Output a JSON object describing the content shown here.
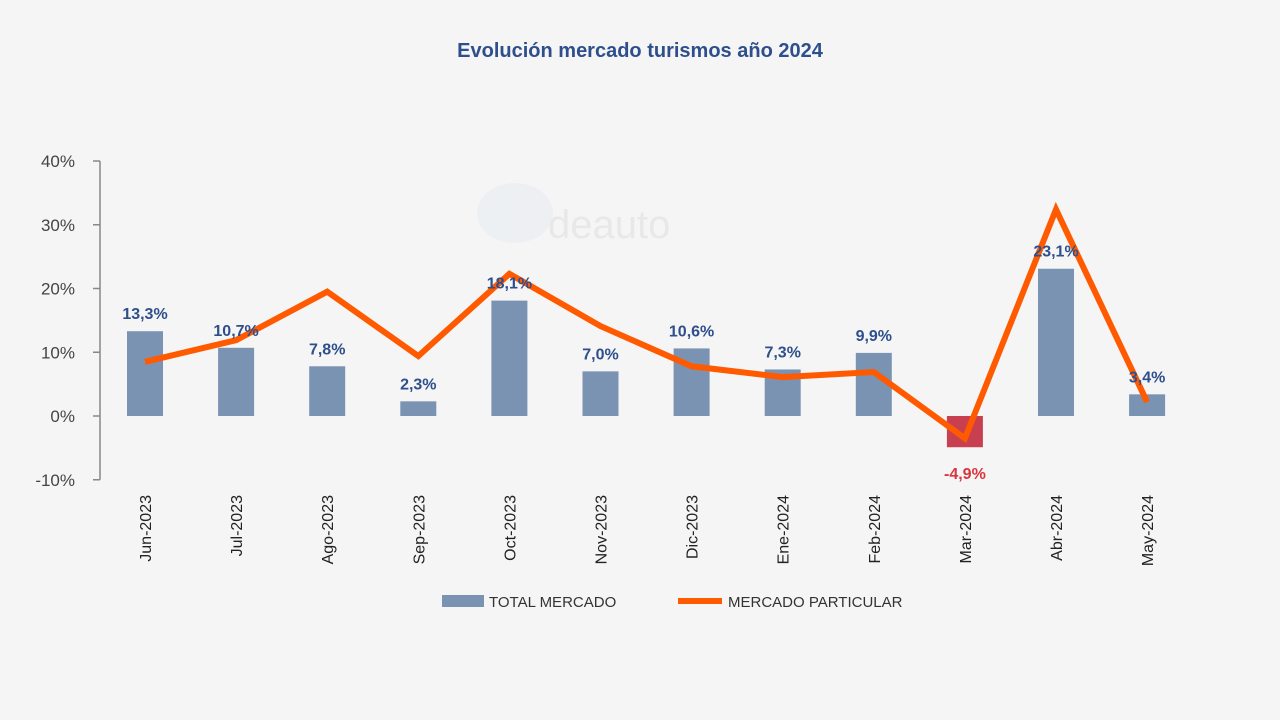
{
  "watermark": "Ideauto",
  "chart_data": {
    "type": "bar",
    "title": "Evolución mercado turismos año 2024",
    "xlabel": "",
    "ylabel": "",
    "ylim": [
      -10,
      40
    ],
    "yticks": [
      -10,
      0,
      10,
      20,
      30,
      40
    ],
    "ytick_labels": [
      "-10%",
      "0%",
      "10%",
      "20%",
      "30%",
      "40%"
    ],
    "grid": false,
    "legend_position": "bottom",
    "categories": [
      "Jun-2023",
      "Jul-2023",
      "Ago-2023",
      "Sep-2023",
      "Oct-2023",
      "Nov-2023",
      "Dic-2023",
      "Ene-2024",
      "Feb-2024",
      "Mar-2024",
      "Abr-2024",
      "May-2024"
    ],
    "series": [
      {
        "name": "TOTAL MERCADO",
        "type": "bar",
        "color": "#7b93b3",
        "negative_color": "#c8404f",
        "values": [
          13.3,
          10.7,
          7.8,
          2.3,
          18.1,
          7.0,
          10.6,
          7.3,
          9.9,
          -4.9,
          23.1,
          3.4
        ],
        "data_labels": [
          "13,3%",
          "10,7%",
          "7,8%",
          "2,3%",
          "18,1%",
          "7,0%",
          "10,6%",
          "7,3%",
          "9,9%",
          "-4,9%",
          "23,1%",
          "3,4%"
        ]
      },
      {
        "name": "MERCADO PARTICULAR",
        "type": "line",
        "color": "#ff5a00",
        "values": [
          8.5,
          11.9,
          19.5,
          9.4,
          22.3,
          14.1,
          7.8,
          6.1,
          6.9,
          -3.5,
          32.4,
          2.2
        ]
      }
    ],
    "label_color": "#2e4f8c",
    "negative_label_color": "#d9343e"
  }
}
